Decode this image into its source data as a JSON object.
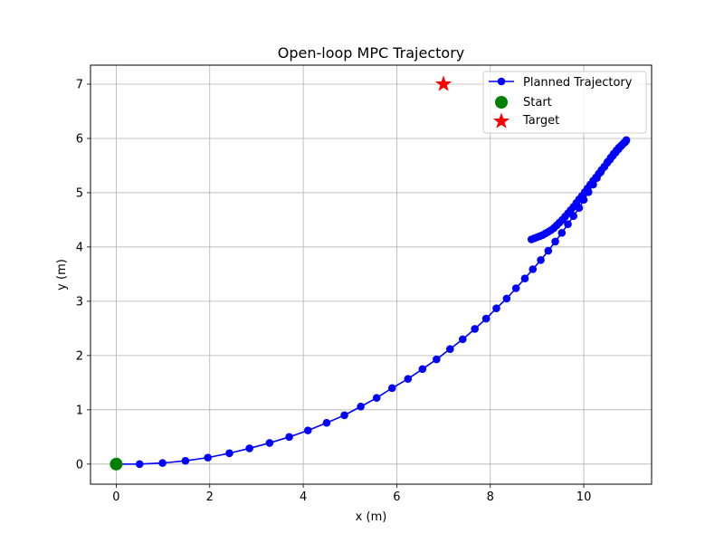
{
  "chart_data": {
    "type": "line",
    "title": "Open-loop MPC Trajectory",
    "xlabel": "x (m)",
    "ylabel": "y (m)",
    "xlim": [
      -0.55,
      11.45
    ],
    "ylim": [
      -0.37,
      7.35
    ],
    "xticks": [
      0,
      2,
      4,
      6,
      8,
      10
    ],
    "yticks": [
      0,
      1,
      2,
      3,
      4,
      5,
      6,
      7
    ],
    "grid": true,
    "legend_position": "top-right",
    "series": [
      {
        "name": "Planned Trajectory",
        "kind": "line-marker",
        "color": "#0000ff",
        "x": [
          0.0,
          0.5,
          0.99,
          1.48,
          1.96,
          2.42,
          2.85,
          3.28,
          3.7,
          4.1,
          4.5,
          4.88,
          5.23,
          5.57,
          5.9,
          6.24,
          6.55,
          6.85,
          7.14,
          7.41,
          7.67,
          7.91,
          8.13,
          8.35,
          8.55,
          8.74,
          8.91,
          9.08,
          9.24,
          9.39,
          9.53,
          9.66,
          9.78,
          9.9,
          10.0,
          10.1,
          10.2,
          10.28,
          10.36,
          10.44,
          10.51,
          10.58,
          10.64,
          10.7,
          10.75,
          10.8,
          10.84,
          10.88,
          10.9,
          10.91,
          10.86,
          10.8,
          10.74,
          10.68,
          10.62,
          10.56,
          10.5,
          10.44,
          10.38,
          10.32,
          10.26,
          10.2,
          10.14,
          10.08,
          10.02,
          9.96,
          9.9,
          9.84,
          9.78,
          9.72,
          9.66,
          9.6,
          9.54,
          9.48,
          9.42,
          9.36,
          9.3,
          9.24,
          9.18,
          9.12,
          9.06,
          9.0,
          8.94,
          8.88
        ],
        "y": [
          0.0,
          0.0,
          0.02,
          0.06,
          0.12,
          0.2,
          0.29,
          0.39,
          0.5,
          0.62,
          0.76,
          0.9,
          1.06,
          1.22,
          1.4,
          1.57,
          1.75,
          1.93,
          2.12,
          2.3,
          2.49,
          2.68,
          2.87,
          3.05,
          3.24,
          3.42,
          3.59,
          3.76,
          3.93,
          4.1,
          4.26,
          4.42,
          4.57,
          4.72,
          4.87,
          5.01,
          5.15,
          5.27,
          5.38,
          5.48,
          5.57,
          5.65,
          5.72,
          5.78,
          5.83,
          5.87,
          5.9,
          5.93,
          5.95,
          5.97,
          5.92,
          5.86,
          5.8,
          5.74,
          5.68,
          5.61,
          5.55,
          5.48,
          5.42,
          5.35,
          5.28,
          5.22,
          5.15,
          5.08,
          5.01,
          4.94,
          4.88,
          4.81,
          4.74,
          4.68,
          4.62,
          4.56,
          4.5,
          4.45,
          4.4,
          4.35,
          4.31,
          4.28,
          4.25,
          4.22,
          4.2,
          4.18,
          4.16,
          4.14
        ]
      },
      {
        "name": "Start",
        "kind": "point",
        "marker": "circle",
        "color": "#008000",
        "x": [
          0
        ],
        "y": [
          0
        ]
      },
      {
        "name": "Target",
        "kind": "point",
        "marker": "star",
        "color": "#ff0000",
        "x": [
          7
        ],
        "y": [
          7
        ]
      }
    ]
  }
}
